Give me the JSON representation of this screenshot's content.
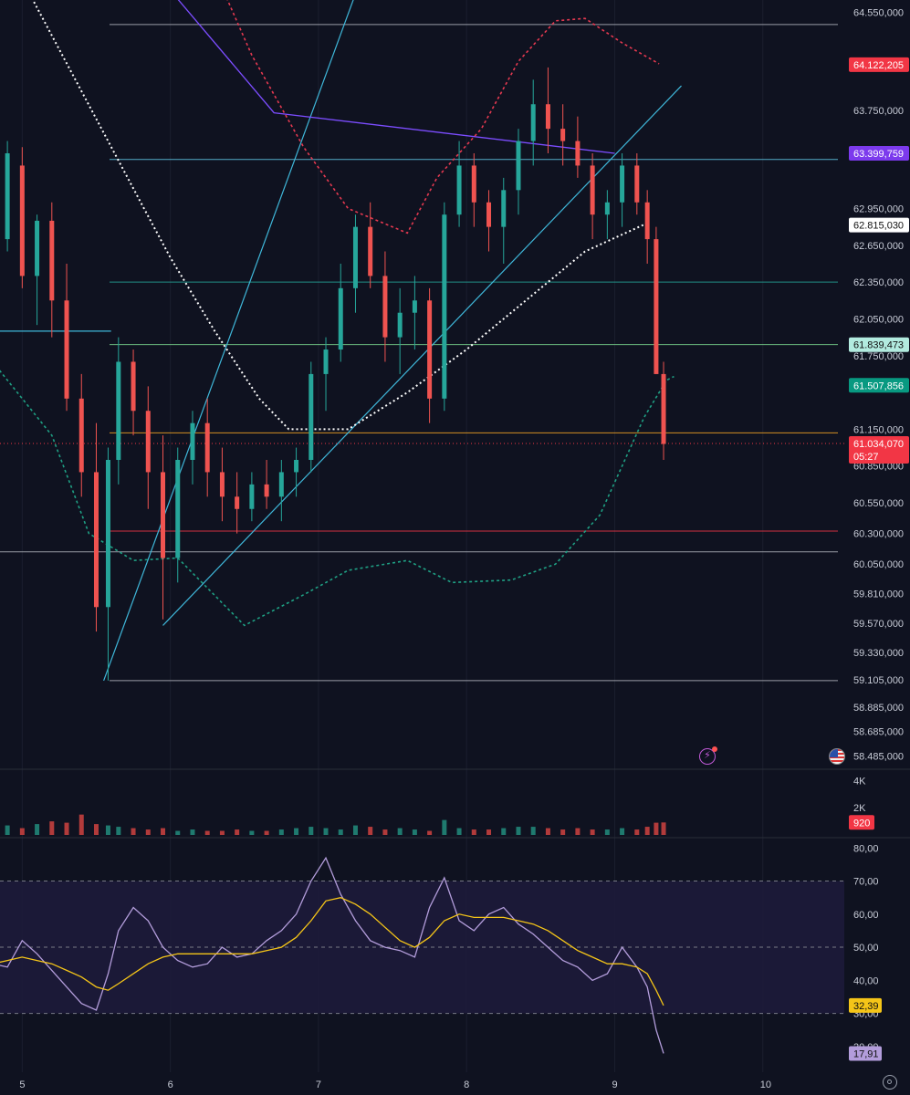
{
  "price_axis": {
    "labels": [
      "64.550,000",
      "63.750,000",
      "62.950,000",
      "62.650,000",
      "62.350,000",
      "62.050,000",
      "61.750,000",
      "61.150,000",
      "60.850,000",
      "60.550,000",
      "60.300,000",
      "60.050,000",
      "59.810,000",
      "59.570,000",
      "59.330,000",
      "59.105,000",
      "58.885,000",
      "58.685,000",
      "58.485,000"
    ]
  },
  "price_tags": [
    {
      "text": "64.122,205",
      "color": "#f23645",
      "text_color": "#ffffff"
    },
    {
      "text": "63.399,759",
      "color": "#7c3aed",
      "text_color": "#ffffff"
    },
    {
      "text": "62.815,030",
      "color": "#ffffff",
      "text_color": "#111111"
    },
    {
      "text": "61.839,473",
      "color": "#b2ebdf",
      "text_color": "#111111"
    },
    {
      "text": "61.507,856",
      "color": "#089981",
      "text_color": "#ffffff"
    },
    {
      "text": "61.034,070",
      "color": "#f23645",
      "text_color": "#ffffff",
      "sub": "05:27"
    }
  ],
  "volume_axis": {
    "labels": [
      "4K",
      "2K"
    ],
    "last_tag": "920",
    "last_tag_color": "#f23645"
  },
  "rsi_axis": {
    "labels": [
      "80,00",
      "70,00",
      "60,00",
      "50,00",
      "40,00",
      "30,00",
      "20,00"
    ],
    "rsi_tag": "17,91",
    "rsi_tag_color": "#b39ddb",
    "ma_tag": "32,39",
    "ma_tag_color": "#f5c518"
  },
  "time_axis": {
    "labels": [
      "5",
      "6",
      "7",
      "8",
      "9",
      "10"
    ]
  },
  "chart_data": {
    "type": "candlestick",
    "price_range": [
      58.4,
      64.65
    ],
    "horizontal_levels": [
      64.45,
      63.35,
      62.35,
      61.84,
      61.12,
      60.32,
      60.15,
      59.1
    ],
    "last_price": 61.03407,
    "sma_dotted_white": [
      [
        0.05,
        64.7
      ],
      [
        0.8,
        63.0
      ],
      [
        1.0,
        62.55
      ],
      [
        1.3,
        61.95
      ],
      [
        1.6,
        61.4
      ],
      [
        1.8,
        61.15
      ],
      [
        2.2,
        61.15
      ],
      [
        2.6,
        61.45
      ],
      [
        3.0,
        61.8
      ],
      [
        3.4,
        62.2
      ],
      [
        3.8,
        62.6
      ],
      [
        4.2,
        62.82
      ]
    ],
    "bb_upper_red": [
      [
        1.35,
        64.75
      ],
      [
        1.55,
        64.2
      ],
      [
        1.9,
        63.45
      ],
      [
        2.2,
        62.95
      ],
      [
        2.6,
        62.75
      ],
      [
        2.8,
        63.2
      ],
      [
        3.1,
        63.6
      ],
      [
        3.35,
        64.15
      ],
      [
        3.6,
        64.48
      ],
      [
        3.8,
        64.5
      ],
      [
        4.05,
        64.3
      ],
      [
        4.3,
        64.13
      ]
    ],
    "bb_lower_green": [
      [
        -0.2,
        61.7
      ],
      [
        0.2,
        61.1
      ],
      [
        0.45,
        60.3
      ],
      [
        0.75,
        60.08
      ],
      [
        1.05,
        60.1
      ],
      [
        1.5,
        59.55
      ],
      [
        1.9,
        59.8
      ],
      [
        2.2,
        60.0
      ],
      [
        2.6,
        60.08
      ],
      [
        2.9,
        59.9
      ],
      [
        3.3,
        59.92
      ],
      [
        3.6,
        60.05
      ],
      [
        3.9,
        60.45
      ],
      [
        4.2,
        61.25
      ],
      [
        4.35,
        61.55
      ],
      [
        4.4,
        61.58
      ]
    ],
    "purple_line": [
      [
        0.95,
        64.8
      ],
      [
        1.7,
        63.73
      ],
      [
        4.0,
        63.4
      ]
    ],
    "channel_lines": [
      [
        [
          0.55,
          59.1
        ],
        [
          2.25,
          64.7
        ]
      ],
      [
        [
          0.95,
          59.55
        ],
        [
          4.45,
          63.95
        ]
      ],
      [
        [
          -0.55,
          61.95
        ],
        [
          0.6,
          61.95
        ]
      ]
    ],
    "ohlc": [
      [
        -0.2,
        62.8,
        62.9,
        62.6,
        62.7
      ],
      [
        -0.1,
        62.7,
        63.5,
        62.6,
        63.4
      ],
      [
        0.0,
        63.3,
        63.45,
        62.3,
        62.4
      ],
      [
        0.1,
        62.4,
        62.9,
        62.0,
        62.85
      ],
      [
        0.2,
        62.85,
        63.0,
        61.9,
        62.2
      ],
      [
        0.3,
        62.2,
        62.5,
        61.3,
        61.4
      ],
      [
        0.4,
        61.4,
        61.6,
        60.6,
        60.8
      ],
      [
        0.5,
        60.8,
        61.2,
        59.5,
        59.7
      ],
      [
        0.58,
        59.7,
        61.0,
        59.1,
        60.9
      ],
      [
        0.65,
        60.9,
        61.9,
        60.7,
        61.7
      ],
      [
        0.75,
        61.7,
        61.8,
        61.1,
        61.3
      ],
      [
        0.85,
        61.3,
        61.5,
        60.5,
        60.8
      ],
      [
        0.95,
        60.8,
        61.1,
        59.6,
        60.1
      ],
      [
        1.05,
        60.1,
        61.0,
        59.9,
        60.9
      ],
      [
        1.15,
        60.9,
        61.3,
        60.7,
        61.2
      ],
      [
        1.25,
        61.2,
        61.4,
        60.6,
        60.8
      ],
      [
        1.35,
        60.8,
        61.0,
        60.4,
        60.6
      ],
      [
        1.45,
        60.6,
        60.8,
        60.3,
        60.5
      ],
      [
        1.55,
        60.5,
        60.8,
        60.4,
        60.7
      ],
      [
        1.65,
        60.7,
        60.9,
        60.5,
        60.6
      ],
      [
        1.75,
        60.6,
        60.9,
        60.4,
        60.8
      ],
      [
        1.85,
        60.8,
        61.0,
        60.6,
        60.9
      ],
      [
        1.95,
        60.9,
        61.7,
        60.8,
        61.6
      ],
      [
        2.05,
        61.6,
        61.9,
        61.3,
        61.8
      ],
      [
        2.15,
        61.8,
        62.5,
        61.7,
        62.3
      ],
      [
        2.25,
        62.3,
        62.9,
        62.1,
        62.8
      ],
      [
        2.35,
        62.8,
        63.0,
        62.3,
        62.4
      ],
      [
        2.45,
        62.4,
        62.6,
        61.7,
        61.9
      ],
      [
        2.55,
        61.9,
        62.3,
        61.6,
        62.1
      ],
      [
        2.65,
        62.1,
        62.4,
        61.8,
        62.2
      ],
      [
        2.75,
        62.2,
        62.3,
        61.2,
        61.4
      ],
      [
        2.85,
        61.4,
        63.0,
        61.3,
        62.9
      ],
      [
        2.95,
        62.9,
        63.5,
        62.8,
        63.3
      ],
      [
        3.05,
        63.3,
        63.4,
        62.8,
        63.0
      ],
      [
        3.15,
        63.0,
        63.1,
        62.6,
        62.8
      ],
      [
        3.25,
        62.8,
        63.2,
        62.5,
        63.1
      ],
      [
        3.35,
        63.1,
        63.6,
        62.9,
        63.5
      ],
      [
        3.45,
        63.5,
        64.0,
        63.3,
        63.8
      ],
      [
        3.55,
        63.8,
        64.1,
        63.4,
        63.6
      ],
      [
        3.65,
        63.6,
        63.8,
        63.3,
        63.5
      ],
      [
        3.75,
        63.5,
        63.7,
        63.2,
        63.3
      ],
      [
        3.85,
        63.3,
        63.4,
        62.7,
        62.9
      ],
      [
        3.95,
        62.9,
        63.1,
        62.7,
        63.0
      ],
      [
        4.05,
        63.0,
        63.4,
        62.8,
        63.3
      ],
      [
        4.15,
        63.3,
        63.4,
        62.9,
        63.0
      ],
      [
        4.22,
        63.0,
        63.1,
        62.5,
        62.7
      ],
      [
        4.28,
        62.7,
        62.8,
        61.6,
        61.6
      ],
      [
        4.33,
        61.6,
        61.7,
        60.9,
        61.03
      ]
    ],
    "volume": [
      600,
      700,
      500,
      800,
      1000,
      900,
      1500,
      800,
      700,
      600,
      500,
      400,
      500,
      300,
      400,
      300,
      300,
      400,
      300,
      300,
      400,
      500,
      600,
      500,
      400,
      700,
      600,
      400,
      500,
      400,
      300,
      1100,
      500,
      400,
      400,
      500,
      600,
      600,
      500,
      400,
      500,
      400,
      400,
      500,
      400,
      600,
      900,
      920
    ],
    "rsi": [
      45,
      44,
      52,
      48,
      43,
      38,
      33,
      31,
      42,
      55,
      62,
      58,
      50,
      46,
      44,
      45,
      50,
      47,
      48,
      52,
      55,
      60,
      70,
      77,
      66,
      58,
      52,
      50,
      49,
      47,
      62,
      71,
      58,
      55,
      60,
      62,
      57,
      54,
      50,
      46,
      44,
      40,
      42,
      50,
      44,
      38,
      25,
      17.91
    ],
    "rsi_ma": [
      45,
      46,
      47,
      46,
      45,
      43,
      41,
      38,
      37,
      39,
      42,
      45,
      47,
      48,
      48,
      48,
      48,
      48,
      48,
      49,
      50,
      53,
      58,
      64,
      65,
      63,
      60,
      56,
      52,
      50,
      53,
      58,
      60,
      59,
      59,
      59,
      58,
      57,
      55,
      52,
      49,
      47,
      45,
      45,
      44,
      42,
      37,
      32.39
    ],
    "rsi_levels": [
      70,
      50,
      30
    ],
    "rsi_range": [
      15,
      82
    ],
    "volume_range": [
      0,
      4500
    ],
    "time_labels": [
      "5",
      "6",
      "7",
      "8",
      "9",
      "10"
    ],
    "time_range": [
      -0.15,
      5.55
    ]
  }
}
